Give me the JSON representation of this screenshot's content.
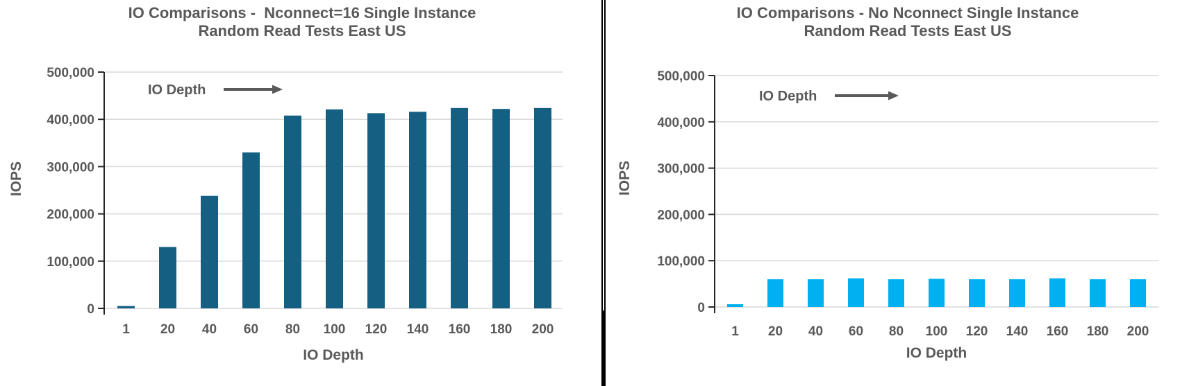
{
  "colors": {
    "title_text": "#595959",
    "tick_text": "#595959",
    "gridline": "#D9D9D9",
    "axis_line": "#262626",
    "annotation": "#595959",
    "divider": "#000000",
    "left_bar": "#156082",
    "right_bar": "#00B0F0",
    "background": "#FFFFFF"
  },
  "chart_data": [
    {
      "type": "bar",
      "title_line1": "IO Comparisons -  Nconnect=16 Single Instance",
      "title_line2": "Random Read Tests East US",
      "categories": [
        "1",
        "20",
        "40",
        "60",
        "80",
        "100",
        "120",
        "140",
        "160",
        "180",
        "200"
      ],
      "values": [
        5000,
        130000,
        238000,
        330000,
        408000,
        421000,
        413000,
        416000,
        424000,
        422000,
        424000
      ],
      "xlabel": "IO Depth",
      "ylabel": "IOPS",
      "ylim": [
        0,
        500000
      ],
      "ytick_step": 100000,
      "ytick_labels": [
        "0",
        "100,000",
        "200,000",
        "300,000",
        "400,000",
        "500,000"
      ],
      "annotation": "IO Depth",
      "bar_color": "#156082",
      "grid": "horizontal",
      "legend": "none"
    },
    {
      "type": "bar",
      "title_line1": "IO Comparisons - No Nconnect Single Instance",
      "title_line2": "Random Read Tests East US",
      "categories": [
        "1",
        "20",
        "40",
        "60",
        "80",
        "100",
        "120",
        "140",
        "160",
        "180",
        "200"
      ],
      "values": [
        6000,
        60000,
        60000,
        62000,
        60000,
        61000,
        60000,
        60000,
        62000,
        60000,
        60000
      ],
      "xlabel": "IO Depth",
      "ylabel": "IOPS",
      "ylim": [
        0,
        500000
      ],
      "ytick_step": 100000,
      "ytick_labels": [
        "0",
        "100,000",
        "200,000",
        "300,000",
        "400,000",
        "500,000"
      ],
      "annotation": "IO Depth",
      "bar_color": "#00B0F0",
      "grid": "horizontal",
      "legend": "none"
    }
  ]
}
